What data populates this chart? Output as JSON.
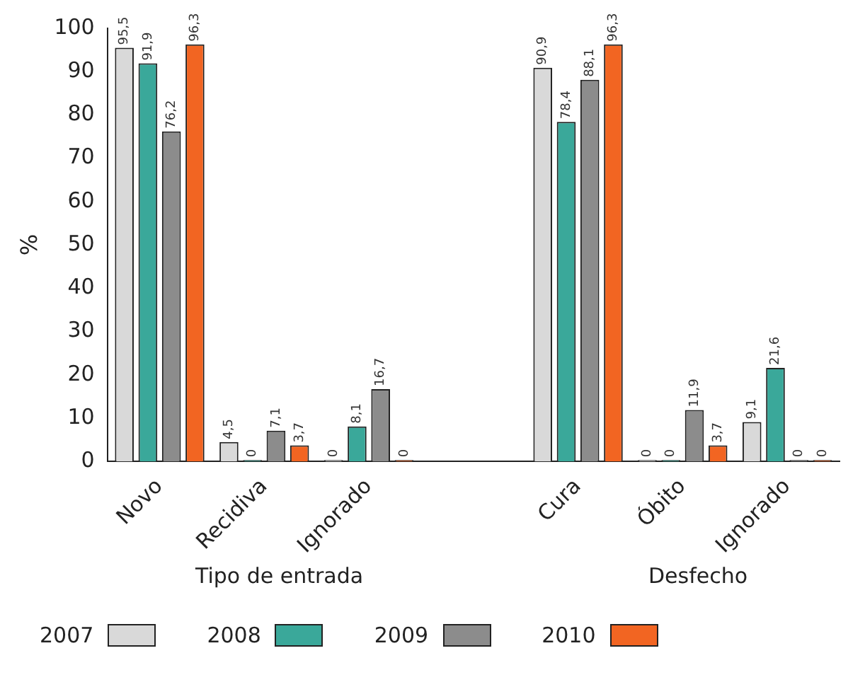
{
  "chart_data": {
    "type": "bar",
    "ylabel": "%",
    "categories": [
      "Novo",
      "Recidiva",
      "Ignorado",
      null,
      "Cura",
      "Óbito",
      "Ignorado"
    ],
    "series": [
      {
        "name": "2007",
        "color": "#d9d9d9",
        "values": [
          95.5,
          4.5,
          0,
          null,
          90.9,
          0,
          9.1
        ],
        "value_labels": [
          "95,5",
          "4,5",
          "0",
          null,
          "90,9",
          "0",
          "9,1"
        ]
      },
      {
        "name": "2008",
        "color": "#3aa89a",
        "values": [
          91.9,
          0,
          8.1,
          null,
          78.4,
          0,
          21.6
        ],
        "value_labels": [
          "91,9",
          "0",
          "8,1",
          null,
          "78,4",
          "0",
          "21,6"
        ]
      },
      {
        "name": "2009",
        "color": "#8c8c8c",
        "values": [
          76.2,
          7.1,
          16.7,
          null,
          88.1,
          11.9,
          0
        ],
        "value_labels": [
          "76,2",
          "7,1",
          "16,7",
          null,
          "88,1",
          "11,9",
          "0"
        ]
      },
      {
        "name": "2010",
        "color": "#f26522",
        "values": [
          96.3,
          3.7,
          0,
          null,
          96.3,
          3.7,
          0
        ],
        "value_labels": [
          "96,3",
          "3,7",
          "0",
          null,
          "96,3",
          "3,7",
          "0"
        ]
      }
    ],
    "ylim": [
      0,
      100
    ],
    "yticks": [
      0,
      10,
      20,
      30,
      40,
      50,
      60,
      70,
      80,
      90,
      100
    ],
    "grid": false,
    "legend": "bottom",
    "annotations": [
      "Tipo de entrada",
      "Desfecho"
    ]
  }
}
